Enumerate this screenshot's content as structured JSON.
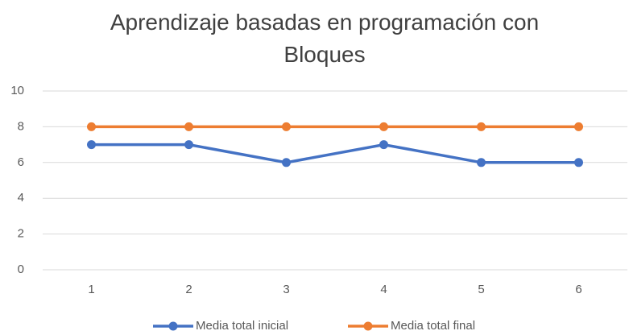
{
  "chart_data": {
    "type": "line",
    "title": "Aprendizaje basadas en programación con Bloques",
    "categories": [
      "1",
      "2",
      "3",
      "4",
      "5",
      "6"
    ],
    "series": [
      {
        "name": "Media total inicial",
        "color": "#4472c4",
        "values": [
          7,
          7,
          6,
          7,
          6,
          6
        ]
      },
      {
        "name": "Media total final",
        "color": "#ed7d31",
        "values": [
          8,
          8,
          8,
          8,
          8,
          8
        ]
      }
    ],
    "ylim": [
      0,
      10
    ],
    "yticks": [
      0,
      2,
      4,
      6,
      8,
      10
    ],
    "grid": true,
    "legend": "bottom"
  }
}
